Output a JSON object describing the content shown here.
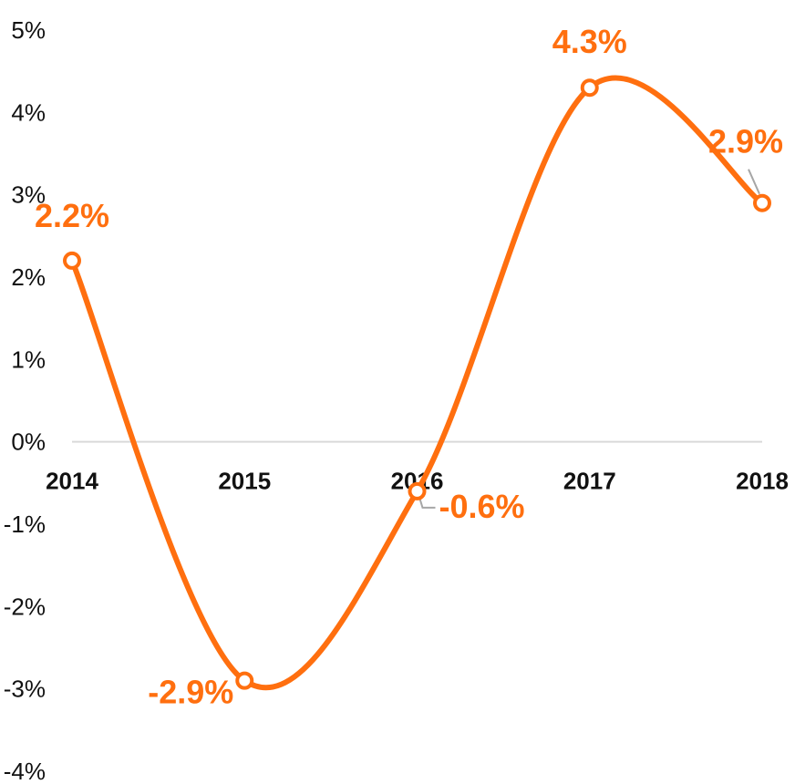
{
  "chart_data": {
    "type": "line",
    "smooth": true,
    "x": [
      "2014",
      "2015",
      "2016",
      "2017",
      "2018"
    ],
    "series": [
      {
        "values": [
          2.2,
          -2.9,
          -0.6,
          4.3,
          2.9
        ],
        "labels": [
          "2.2%",
          "-2.9%",
          "-0.6%",
          "4.3%",
          "2.9%"
        ],
        "color": "#FF6F0F",
        "marker": "hollow-circle"
      }
    ],
    "y_ticks": [
      "5%",
      "4%",
      "3%",
      "2%",
      "1%",
      "0%",
      "-1%",
      "-2%",
      "-3%",
      "-4%"
    ],
    "ylim": [
      -4,
      5
    ],
    "grid": false,
    "zero_line": true,
    "x_labels_position": "at-zero-line",
    "legend": "none",
    "title": "",
    "xlabel": "",
    "ylabel": ""
  },
  "colors": {
    "series": "#FF6F0F",
    "zero_line": "#d9d9d9",
    "leader_line": "#a6a6a6",
    "text": "#111111"
  }
}
